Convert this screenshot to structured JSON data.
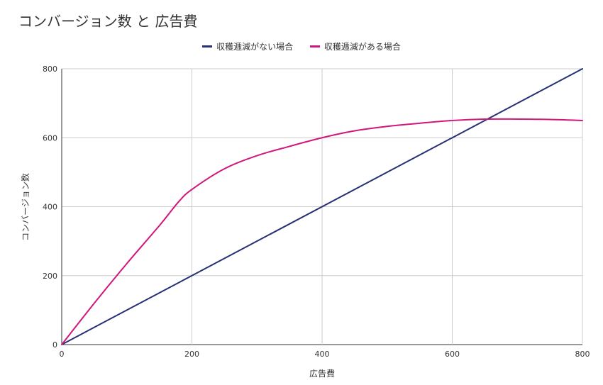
{
  "chart_data": {
    "type": "line",
    "title": "コンバージョン数 と 広告費",
    "xlabel": "広告費",
    "ylabel": "コンバージョン数",
    "xlim": [
      0,
      800
    ],
    "ylim": [
      0,
      800
    ],
    "x_ticks": [
      0,
      200,
      400,
      600,
      800
    ],
    "y_ticks": [
      0,
      200,
      400,
      600,
      800
    ],
    "grid": true,
    "legend_position": "top",
    "series": [
      {
        "name": "収穫逓減がない場合",
        "color": "#283075",
        "points": [
          [
            0,
            0
          ],
          [
            800,
            800
          ]
        ]
      },
      {
        "name": "収穫逓減がある場合",
        "color": "#d0177c",
        "points": [
          [
            0,
            0
          ],
          [
            50,
            120
          ],
          [
            100,
            235
          ],
          [
            150,
            345
          ],
          [
            180,
            415
          ],
          [
            200,
            450
          ],
          [
            250,
            510
          ],
          [
            300,
            548
          ],
          [
            350,
            575
          ],
          [
            400,
            600
          ],
          [
            450,
            620
          ],
          [
            500,
            633
          ],
          [
            550,
            642
          ],
          [
            600,
            650
          ],
          [
            650,
            654
          ],
          [
            700,
            654
          ],
          [
            750,
            653
          ],
          [
            800,
            650
          ]
        ]
      }
    ]
  }
}
